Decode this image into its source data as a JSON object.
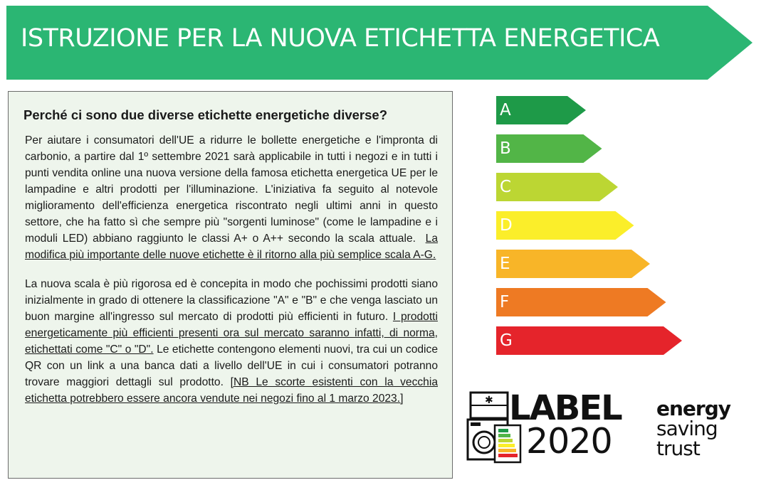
{
  "banner": {
    "title": "ISTRUZIONE PER LA NUOVA ETICHETTA ENERGETICA",
    "color": "#2bb673"
  },
  "info": {
    "heading": "Perché ci sono due diverse etichette energetiche diverse?",
    "para1": "Per aiutare i consumatori dell'UE a ridurre le bollette energetiche e l'impronta di carbonio, a partire dal 1º settembre 2021 sarà applicabile in tutti i negozi e in tutti i punti vendita online una nuova versione della famosa etichetta energetica UE per le lampadine e altri prodotti per l'illuminazione. L'iniziativa fa seguito al notevole miglioramento dell'efficienza energetica riscontrato negli ultimi anni in questo settore, che ha fatto sì che sempre più \"sorgenti luminose\" (come le lampadine e i moduli LED) abbiano raggiunto le classi A+ o A++ secondo la scala attuale.",
    "para1_underlined": "La modifica più importante delle nuove etichette è il ritorno alla più semplice scala A-G.",
    "para2": "La nuova scala è più rigorosa ed è concepita in modo che pochissimi prodotti siano inizialmente in grado di ottenere la classificazione \"A\" e \"B\" e che venga lasciato un buon margine all'ingresso sul mercato di prodotti più efficienti in futuro.",
    "para2_underlined": "I prodotti energeticamente più efficienti presenti ora sul mercato saranno infatti, di norma, etichettati come \"C\" o \"D\".",
    "para2_rest": "Le etichette contengono elementi nuovi, tra cui un codice QR con un link a una banca dati a livello dell'UE in cui i consumatori potranno trovare maggiori dettagli sul prodotto.",
    "para2_note": "[NB Le scorte esistenti con la vecchia etichetta potrebbero essere ancora vendute nei negozi fino al 1 marzo 2023.]"
  },
  "energy_scale": {
    "classes": [
      {
        "letter": "A",
        "color": "#1e9a48"
      },
      {
        "letter": "B",
        "color": "#52b547"
      },
      {
        "letter": "C",
        "color": "#bcd633"
      },
      {
        "letter": "D",
        "color": "#fbee2a"
      },
      {
        "letter": "E",
        "color": "#f8b528"
      },
      {
        "letter": "F",
        "color": "#ee7a23"
      },
      {
        "letter": "G",
        "color": "#e5242b"
      }
    ]
  },
  "logos": {
    "label_word": "LABEL",
    "label_year": "2020",
    "est_line1": "energy",
    "est_line2": "saving",
    "est_line3": "trust"
  }
}
